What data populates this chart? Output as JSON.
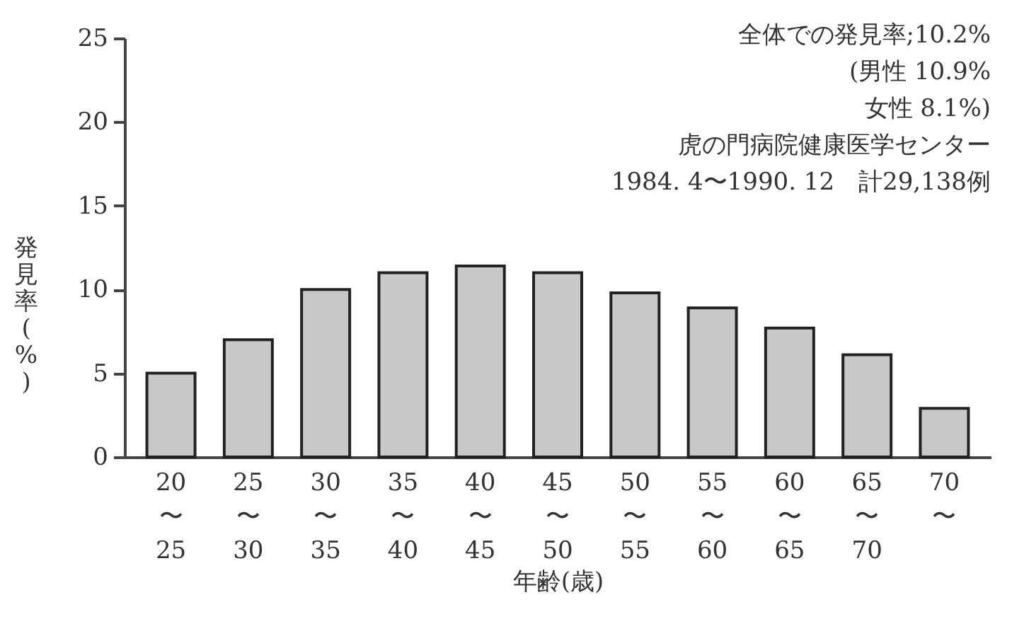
{
  "chart_data": {
    "type": "bar",
    "xlabel": "年齢(歳)",
    "ylabel": "発見率(%)",
    "categories": [
      "20〜25",
      "25〜30",
      "30〜35",
      "35〜40",
      "40〜45",
      "45〜50",
      "50〜55",
      "55〜60",
      "60〜65",
      "65〜70",
      "70〜"
    ],
    "values": [
      5,
      7,
      10,
      11,
      11.4,
      11,
      9.8,
      8.9,
      7.7,
      6.1,
      2.9
    ],
    "color": "#c8c8c8",
    "ylim": [
      0,
      25
    ],
    "yticks": [
      0,
      5,
      10,
      15,
      20,
      25
    ],
    "grid": false,
    "annotations": [
      "全体での発見率;10.2%",
      "(男性 10.9%",
      "女性  8.1%)",
      "虎の門病院健康医学センター",
      "1984. 4〜1990. 12　計29,138例"
    ]
  }
}
